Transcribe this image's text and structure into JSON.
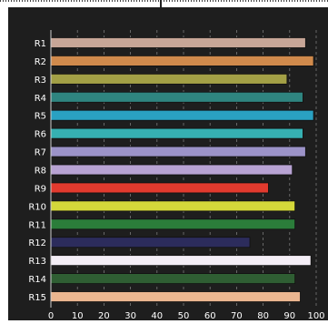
{
  "chart_data": {
    "type": "bar",
    "orientation": "horizontal",
    "categories": [
      "R1",
      "R2",
      "R3",
      "R4",
      "R5",
      "R6",
      "R7",
      "R8",
      "R9",
      "R10",
      "R11",
      "R12",
      "R13",
      "R14",
      "R15"
    ],
    "values": [
      96,
      99,
      89,
      95,
      99,
      95,
      96,
      91,
      82,
      92,
      92,
      75,
      98,
      92,
      94
    ],
    "colors": [
      "#c7a697",
      "#d08a4c",
      "#a3a046",
      "#2f8580",
      "#2aa1c2",
      "#36b0b2",
      "#9c93c8",
      "#b8a3d3",
      "#e23a2e",
      "#d4d83a",
      "#2b7d3a",
      "#2c2c5c",
      "#f4eef6",
      "#2f5e33",
      "#ebb690"
    ],
    "xlim": [
      0,
      100
    ],
    "xticks": [
      "0",
      "10",
      "20",
      "30",
      "40",
      "50",
      "60",
      "70",
      "80",
      "90",
      "100"
    ],
    "grid": true,
    "background": "#1e1e1e",
    "title": "",
    "xlabel": "",
    "ylabel": ""
  }
}
